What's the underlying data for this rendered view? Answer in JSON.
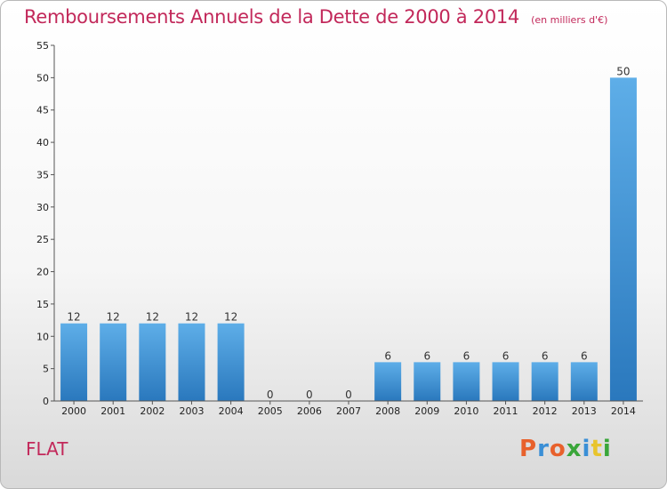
{
  "chart_data": {
    "type": "bar",
    "title": "Remboursements Annuels de la Dette de 2000 à 2014",
    "subtitle": "(en milliers d'€)",
    "categories": [
      "2000",
      "2001",
      "2002",
      "2003",
      "2004",
      "2005",
      "2006",
      "2007",
      "2008",
      "2009",
      "2010",
      "2011",
      "2012",
      "2013",
      "2014"
    ],
    "values": [
      12,
      12,
      12,
      12,
      12,
      0,
      0,
      0,
      6,
      6,
      6,
      6,
      6,
      6,
      50
    ],
    "ylim": [
      0,
      55
    ],
    "yticks": [
      0,
      5,
      10,
      15,
      20,
      25,
      30,
      35,
      40,
      45,
      50,
      55
    ],
    "grid": false,
    "bar_color": "#3a8fd6"
  },
  "footer": {
    "commune": "FLAT",
    "logo": "Proxiti",
    "logo_colors": [
      "#e8612c",
      "#3a8fd6",
      "#e8612c",
      "#3aa63a",
      "#3a8fd6",
      "#e8c42c",
      "#3aa63a"
    ]
  }
}
